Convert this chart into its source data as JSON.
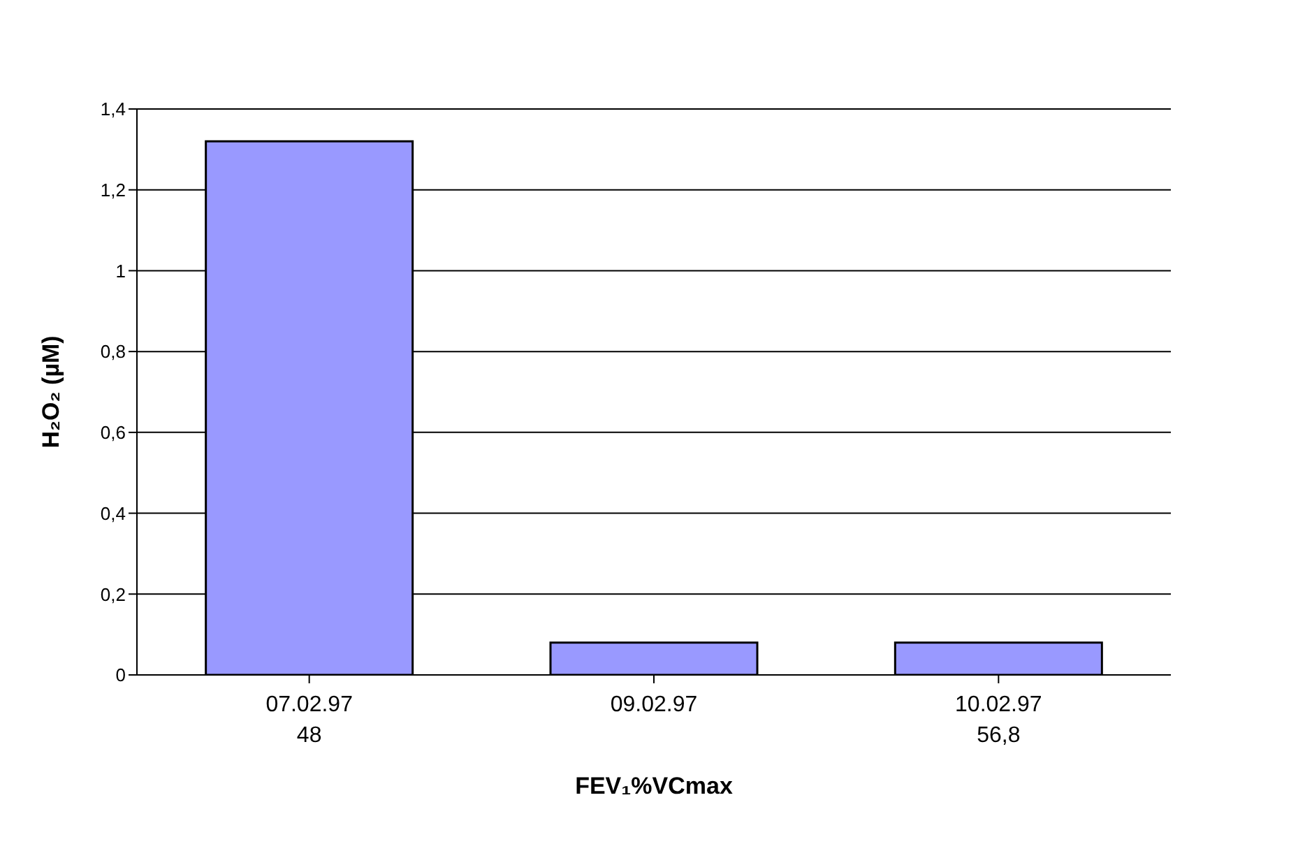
{
  "chart_data": {
    "type": "bar",
    "xlabel": "FEV₁%VCmax",
    "ylabel": "H₂O₂ (µM)",
    "categories": [
      "07.02.97\n48",
      "09.02.97",
      "10.02.97\n56,8"
    ],
    "values": [
      1.32,
      0.08,
      0.08
    ],
    "color": "#9999ff",
    "ylim": [
      0,
      1.4
    ],
    "yticks": [
      0,
      {
        "value": 0.2,
        "label": "0,2"
      },
      {
        "value": 0.4,
        "label": "0,4"
      },
      {
        "value": 0.6,
        "label": "0,6"
      },
      {
        "value": 0.8,
        "label": "0,8"
      },
      1,
      {
        "value": 1.2,
        "label": "1,2"
      },
      {
        "value": 1.4,
        "label": "1,4"
      }
    ],
    "grid": "y"
  }
}
